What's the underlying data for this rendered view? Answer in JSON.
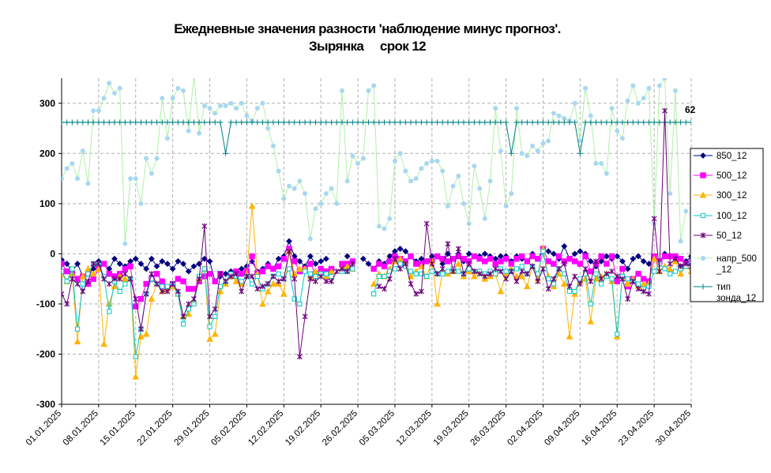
{
  "chart_data": {
    "type": "line",
    "title": "Ежедневные значения разности 'наблюдение минус прогноз'.",
    "subtitle": "Зырянка     срок 12",
    "xlabel": "",
    "ylabel": "",
    "ylim": [
      -300,
      350
    ],
    "y_ticks": [
      -300,
      -200,
      -100,
      0,
      100,
      200,
      300
    ],
    "y_tick_labels": [
      "-300",
      "-200",
      "-100",
      "0",
      "100",
      "200",
      "300"
    ],
    "x_tick_labels": [
      "01.01.2025",
      "08.01.2025",
      "15.01.2025",
      "22.01.2025",
      "29.01.2025",
      "05.02.2025",
      "12.02.2025",
      "19.02.2025",
      "26.02.2025",
      "05.03.2025",
      "12.03.2025",
      "19.03.2025",
      "26.03.2025",
      "02.04.2025",
      "09.04.2025",
      "16.04.2025",
      "23.04.2025",
      "30.04.2025"
    ],
    "x_tick_days": [
      0,
      7,
      14,
      21,
      28,
      35,
      42,
      49,
      56,
      63,
      70,
      77,
      84,
      91,
      98,
      105,
      112,
      119
    ],
    "x_range_days": [
      0,
      119
    ],
    "grid": true,
    "legend_position": "right",
    "annotation": "62",
    "series": [
      {
        "name": "850_12",
        "color": "#000080",
        "marker": "diamond",
        "gaps": [
          51,
          52,
          53,
          55,
          56
        ],
        "values": [
          -12,
          -20,
          -35,
          -20,
          -45,
          -35,
          -30,
          -15,
          -20,
          -30,
          -10,
          -20,
          -25,
          -15,
          -10,
          -20,
          -30,
          -10,
          -25,
          -15,
          -20,
          -30,
          -15,
          -20,
          -35,
          -25,
          -20,
          -10,
          -15,
          -55,
          -45,
          -40,
          -35,
          -35,
          -30,
          -25,
          -15,
          -35,
          -30,
          -20,
          -30,
          -10,
          -5,
          25,
          -5,
          -15,
          -25,
          -5,
          -20,
          -15,
          -10,
          -5,
          -10,
          -5,
          -5,
          0,
          0,
          -10,
          -20,
          -30,
          -15,
          -20,
          -5,
          5,
          10,
          5,
          -5,
          -15,
          -10,
          -15,
          -5,
          -5,
          -20,
          0,
          -10,
          0,
          -15,
          0,
          -5,
          -5,
          0,
          -5,
          -10,
          -5,
          -5,
          -15,
          -5,
          -10,
          -15,
          0,
          -10,
          5,
          5,
          0,
          -10,
          15,
          -10,
          0,
          5,
          0,
          -15,
          -25,
          -15,
          -5,
          -10,
          -5,
          -15,
          -30,
          -10,
          -5,
          -15,
          -20,
          -10,
          -15,
          0,
          -5,
          -10,
          -25,
          -15,
          -5,
          -10,
          0,
          -5
        ]
      },
      {
        "name": "500_12",
        "color": "#ff00ff",
        "marker": "square",
        "gaps": [
          31,
          52,
          56,
          57,
          58
        ],
        "values": [
          -20,
          -35,
          -40,
          -50,
          -45,
          -60,
          -50,
          -30,
          -20,
          -40,
          -45,
          -40,
          -30,
          -25,
          -105,
          -90,
          -60,
          -50,
          -40,
          -55,
          -70,
          -60,
          -50,
          -55,
          -70,
          -70,
          -55,
          -45,
          -40,
          -55,
          -40,
          -30,
          -45,
          -35,
          -40,
          -35,
          -5,
          -40,
          -35,
          -25,
          -30,
          -25,
          -10,
          10,
          -15,
          -35,
          -30,
          -20,
          -40,
          -30,
          -35,
          -30,
          -25,
          -20,
          -20,
          -15,
          -10,
          5,
          -25,
          -30,
          -20,
          -25,
          -15,
          -5,
          -10,
          -15,
          -5,
          -20,
          -20,
          -15,
          -15,
          -5,
          -10,
          -15,
          -10,
          -5,
          -10,
          -15,
          -5,
          -10,
          -15,
          -10,
          -20,
          -15,
          -10,
          -20,
          -10,
          -5,
          -15,
          -5,
          -10,
          10,
          -15,
          -20,
          -5,
          -15,
          -10,
          -15,
          -20,
          -5,
          -35,
          -20,
          -5,
          -20,
          -5,
          -55,
          -30,
          -65,
          -50,
          -40,
          -50,
          -55,
          -5,
          -15,
          -5,
          -5,
          -5,
          -10,
          -20,
          -15
        ]
      },
      {
        "name": "300_12",
        "color": "#ffb400",
        "marker": "triangle",
        "gaps": [
          52,
          56,
          57,
          58
        ],
        "values": [
          -40,
          -55,
          -40,
          -175,
          -45,
          -30,
          -40,
          -30,
          -180,
          -100,
          -65,
          -45,
          -50,
          -50,
          -245,
          -165,
          -160,
          -90,
          -60,
          -75,
          -70,
          -65,
          -80,
          -125,
          -120,
          -95,
          -50,
          -30,
          -170,
          -160,
          -75,
          -60,
          -45,
          -55,
          -60,
          -40,
          95,
          -40,
          -100,
          -75,
          -60,
          -60,
          -80,
          5,
          -40,
          -30,
          -30,
          -45,
          -35,
          -40,
          -45,
          -35,
          -35,
          -30,
          -25,
          -30,
          -25,
          -10,
          -55,
          -60,
          -40,
          -45,
          -30,
          -15,
          -10,
          -20,
          -45,
          -35,
          -25,
          -45,
          -15,
          -100,
          -35,
          -40,
          -35,
          -20,
          -45,
          -35,
          -45,
          -35,
          -50,
          -45,
          -40,
          -75,
          -40,
          -30,
          -45,
          -45,
          -65,
          -25,
          -50,
          10,
          -45,
          -65,
          -40,
          -60,
          -165,
          -80,
          -55,
          -50,
          -135,
          -50,
          -45,
          -40,
          -55,
          -165,
          -45,
          -60,
          -50,
          -65,
          -60,
          -60,
          -10,
          -35,
          -25,
          -30,
          -15,
          -40,
          -25,
          -35
        ]
      },
      {
        "name": "100_12",
        "color": "#00c8c8",
        "marker": "square-open",
        "gaps": [
          52,
          56,
          57,
          58
        ],
        "values": [
          -35,
          -55,
          -30,
          -150,
          -60,
          -40,
          -20,
          -20,
          -45,
          -115,
          -55,
          -75,
          -60,
          -50,
          -205,
          -150,
          -80,
          -50,
          -60,
          -65,
          -65,
          -60,
          -80,
          -140,
          -110,
          -100,
          -45,
          -30,
          -145,
          -125,
          -65,
          -55,
          -40,
          -45,
          -55,
          -45,
          -60,
          -45,
          -70,
          -60,
          -45,
          -40,
          -50,
          -30,
          -90,
          -100,
          -35,
          -40,
          -45,
          -40,
          -40,
          -45,
          -40,
          -35,
          -35,
          -30,
          -35,
          -25,
          -55,
          -80,
          -45,
          -45,
          -35,
          -30,
          -20,
          -25,
          -35,
          -40,
          -40,
          -45,
          -35,
          -40,
          -40,
          -35,
          -30,
          -35,
          -40,
          -30,
          -35,
          -35,
          -40,
          -35,
          -40,
          -30,
          -35,
          -35,
          -30,
          -25,
          -40,
          -25,
          -40,
          5,
          -50,
          -60,
          -30,
          -40,
          -75,
          -75,
          -50,
          -40,
          -100,
          -40,
          -60,
          -45,
          -50,
          -160,
          -45,
          -50,
          -55,
          -60,
          -70,
          -65,
          -35,
          -20,
          -30,
          -40,
          -35,
          -30,
          -25,
          -15
        ]
      },
      {
        "name": "50_12",
        "color": "#6a007a",
        "marker": "star",
        "gaps": [
          56,
          57,
          58,
          59
        ],
        "values": [
          -80,
          -100,
          -50,
          -60,
          -75,
          -55,
          -20,
          -20,
          -50,
          -60,
          -50,
          -50,
          -40,
          -50,
          -90,
          -150,
          -80,
          -40,
          -60,
          -75,
          -75,
          -60,
          -75,
          -125,
          -100,
          -90,
          -50,
          55,
          -125,
          -110,
          -40,
          -55,
          -45,
          -40,
          -75,
          -45,
          -45,
          -70,
          -65,
          -60,
          -45,
          -55,
          -50,
          5,
          -50,
          -205,
          -125,
          -50,
          -55,
          -45,
          -55,
          -55,
          -35,
          -30,
          -35,
          -20,
          -35,
          -70,
          -45,
          -65,
          -65,
          -70,
          -50,
          -10,
          -30,
          -20,
          -60,
          -80,
          -75,
          60,
          -20,
          -40,
          -30,
          20,
          -35,
          10,
          -40,
          -20,
          -35,
          -40,
          -45,
          -40,
          -30,
          -35,
          -50,
          -35,
          -55,
          -35,
          -40,
          -25,
          -55,
          -30,
          -70,
          -50,
          -30,
          -20,
          -65,
          -45,
          -60,
          -30,
          -55,
          -15,
          -50,
          -40,
          -35,
          -45,
          -50,
          -90,
          -55,
          -70,
          -75,
          -80,
          70,
          -35,
          285,
          -20,
          -10,
          -25,
          -20,
          -25
        ]
      },
      {
        "name": "напр_500_12",
        "color": "#a8d8f0",
        "line_color": "#b0f0a8",
        "marker": "circle",
        "values": [
          150,
          170,
          180,
          150,
          205,
          140,
          285,
          285,
          310,
          340,
          320,
          330,
          20,
          150,
          150,
          100,
          190,
          160,
          190,
          310,
          230,
          310,
          330,
          325,
          245,
          355,
          240,
          295,
          290,
          280,
          295,
          295,
          300,
          290,
          300,
          275,
          265,
          290,
          300,
          250,
          215,
          165,
          110,
          135,
          130,
          145,
          120,
          30,
          90,
          100,
          120,
          130,
          100,
          325,
          145,
          195,
          180,
          190,
          325,
          335,
          55,
          50,
          70,
          185,
          200,
          165,
          145,
          150,
          170,
          180,
          185,
          185,
          165,
          95,
          135,
          155,
          100,
          60,
          175,
          130,
          70,
          145,
          290,
          205,
          95,
          120,
          290,
          200,
          195,
          215,
          205,
          220,
          225,
          280,
          275,
          270,
          265,
          300,
          225,
          330,
          275,
          180,
          180,
          160,
          290,
          245,
          230,
          305,
          335,
          300,
          310,
          330,
          60,
          335,
          350,
          120,
          325,
          25,
          85
        ]
      },
      {
        "name": "тип зонда_12",
        "color": "#008080",
        "marker": "plus",
        "values": [
          262,
          262,
          262,
          262,
          262,
          262,
          262,
          262,
          262,
          262,
          262,
          262,
          262,
          262,
          262,
          262,
          262,
          262,
          262,
          262,
          262,
          262,
          262,
          262,
          262,
          262,
          262,
          262,
          262,
          262,
          262,
          262,
          262,
          262,
          262,
          262,
          262,
          262,
          262,
          262,
          262,
          262,
          262,
          262,
          262,
          262,
          262,
          262,
          262,
          262,
          262,
          262,
          262,
          262,
          262,
          262,
          262,
          262,
          262,
          262,
          262,
          262,
          262,
          262,
          262,
          262,
          262,
          262,
          262,
          262,
          262,
          262,
          262,
          262,
          262,
          262,
          262,
          262,
          262,
          262,
          262,
          262,
          262,
          262,
          262,
          262,
          262,
          262,
          262,
          262,
          262,
          262,
          262,
          262,
          262,
          262,
          262,
          262,
          262,
          262,
          262,
          262,
          262,
          262,
          262,
          262,
          262,
          262,
          262,
          262,
          262,
          262,
          262,
          262,
          262,
          262,
          262,
          262,
          262,
          262
        ],
        "dips": {
          "31": 200,
          "85": 200,
          "98": 200
        }
      }
    ],
    "legend_labels": [
      {
        "line1": "850_12",
        "line2": ""
      },
      {
        "line1": "500_12",
        "line2": ""
      },
      {
        "line1": "300_12",
        "line2": ""
      },
      {
        "line1": "100_12",
        "line2": ""
      },
      {
        "line1": "50_12",
        "line2": ""
      },
      {
        "line1": "напр_500",
        "line2": "_12"
      },
      {
        "line1": "тип",
        "line2": "зонда_12"
      }
    ]
  }
}
